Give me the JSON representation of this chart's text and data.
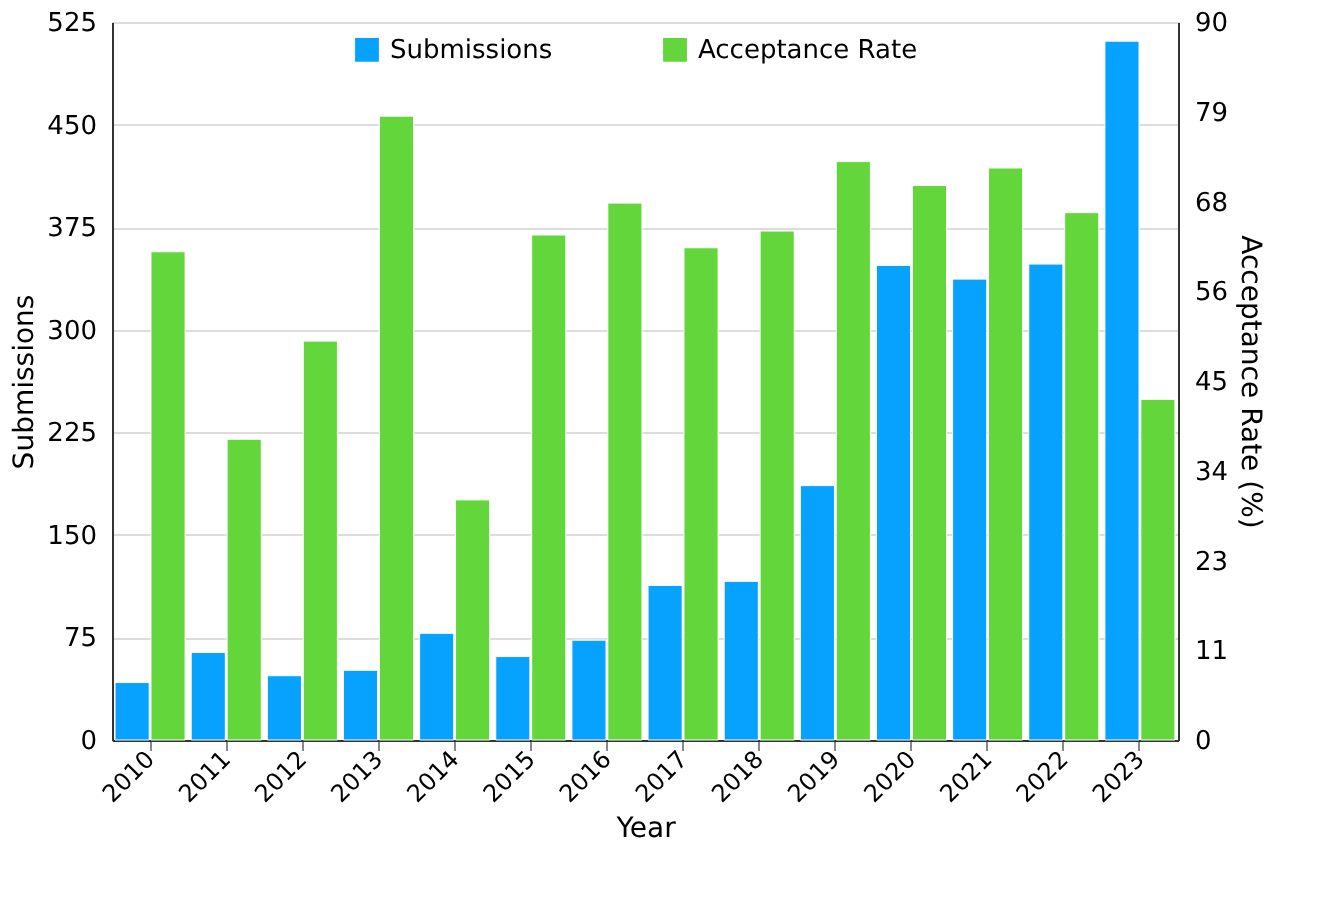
{
  "chart_data": {
    "type": "bar",
    "xlabel": "Year",
    "ylabel": "Submissions",
    "y2label": "Acceptance Rate (%)",
    "categories": [
      "2010",
      "2011",
      "2012",
      "2013",
      "2014",
      "2015",
      "2016",
      "2017",
      "2018",
      "2019",
      "2020",
      "2021",
      "2022",
      "2023"
    ],
    "series": [
      {
        "name": "Submissions",
        "color": "#06a2fd",
        "values": [
          42,
          64,
          47,
          51,
          78,
          61,
          73,
          113,
          116,
          186,
          347,
          337,
          348,
          511
        ]
      },
      {
        "name": "Acceptance Rate",
        "color": "#62d63a",
        "axis": "y2",
        "values": [
          61.2,
          37.7,
          50,
          78.2,
          30.1,
          63.3,
          67.3,
          61.7,
          63.8,
          72.5,
          69.5,
          71.7,
          66.1,
          42.7
        ]
      }
    ],
    "ylim": [
      0,
      525
    ],
    "yticks": [
      0,
      75,
      150,
      225,
      300,
      375,
      450,
      525
    ],
    "y2lim": [
      0,
      90
    ],
    "y2ticks": [
      0,
      {
        "value": 11.25,
        "label": "11"
      },
      {
        "value": 22.5,
        "label": "23"
      },
      {
        "value": 33.75,
        "label": "34"
      },
      45,
      {
        "value": 56.25,
        "label": "56"
      },
      {
        "value": 67.5,
        "label": "68"
      },
      {
        "value": 78.75,
        "label": "79"
      },
      90
    ],
    "grid": "y",
    "legend": "top"
  }
}
